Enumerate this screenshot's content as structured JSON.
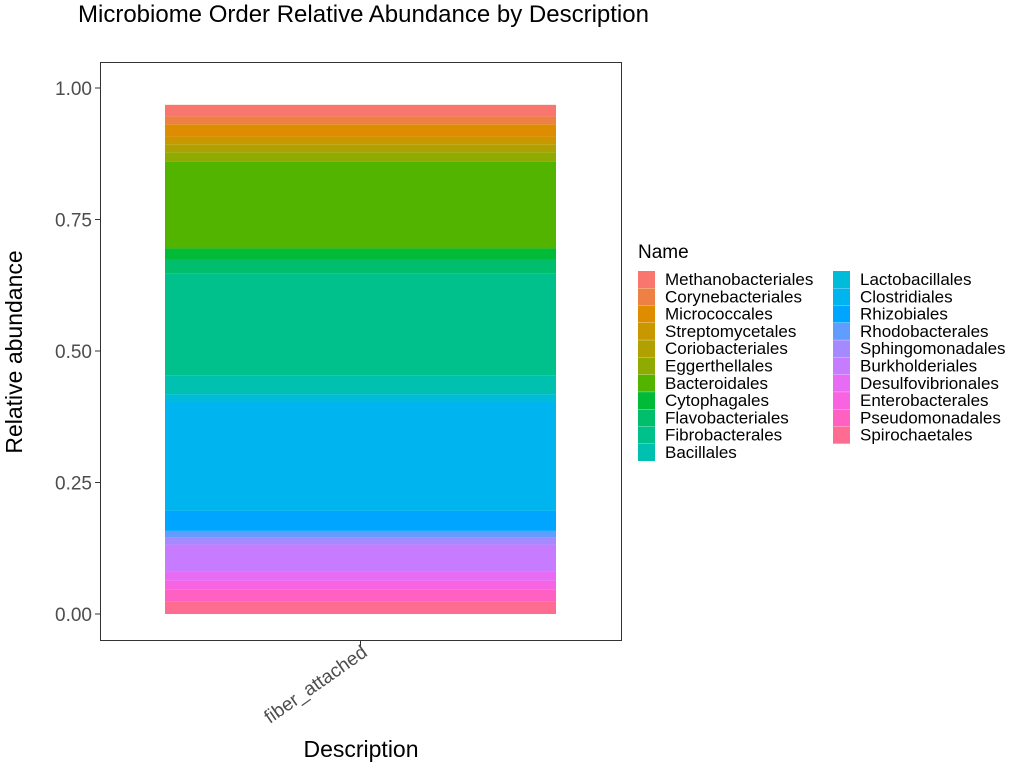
{
  "chart_data": {
    "type": "bar",
    "title": "Microbiome Order Relative Abundance by Description",
    "xlabel": "Description",
    "ylabel": "Relative abundance",
    "categories": [
      "fiber_attached"
    ],
    "ylim": [
      0,
      1
    ],
    "yticks": [
      0,
      0.25,
      0.5,
      0.75,
      1
    ],
    "ytick_labels": [
      "0.00",
      "0.25",
      "0.50",
      "0.75",
      "1.00"
    ],
    "stacked": true,
    "grid": false,
    "legend_title": "Name",
    "legend_position": "right",
    "series": [
      {
        "name": "Methanobacteriales",
        "color": "#F8766D",
        "values": [
          0.022
        ]
      },
      {
        "name": "Corynebacteriales",
        "color": "#EE8043",
        "values": [
          0.015
        ]
      },
      {
        "name": "Micrococcales",
        "color": "#DE8C00",
        "values": [
          0.024
        ]
      },
      {
        "name": "Streptomycetales",
        "color": "#C99800",
        "values": [
          0.014
        ]
      },
      {
        "name": "Coriobacteriales",
        "color": "#B0A100",
        "values": [
          0.015
        ]
      },
      {
        "name": "Eggerthellales",
        "color": "#8FAA00",
        "values": [
          0.018
        ]
      },
      {
        "name": "Bacteroidales",
        "color": "#53B400",
        "values": [
          0.165
        ]
      },
      {
        "name": "Cytophagales",
        "color": "#00BA38",
        "values": [
          0.021
        ]
      },
      {
        "name": "Flavobacteriales",
        "color": "#00BE6C",
        "values": [
          0.027
        ]
      },
      {
        "name": "Fibrobacterales",
        "color": "#00C08B",
        "values": [
          0.193
        ]
      },
      {
        "name": "Bacillales",
        "color": "#00C0AF",
        "values": [
          0.036
        ]
      },
      {
        "name": "Lactobacillales",
        "color": "#00BCD8",
        "values": [
          0.014
        ]
      },
      {
        "name": "Clostridiales",
        "color": "#00B4EF",
        "values": [
          0.208
        ]
      },
      {
        "name": "Rhizobiales",
        "color": "#00A5FF",
        "values": [
          0.038
        ]
      },
      {
        "name": "Rhodobacterales",
        "color": "#619CFF",
        "values": [
          0.013
        ]
      },
      {
        "name": "Sphingomonadales",
        "color": "#A58AFF",
        "values": [
          0.013
        ]
      },
      {
        "name": "Burkholderiales",
        "color": "#C77CFF",
        "values": [
          0.052
        ]
      },
      {
        "name": "Desulfovibrionales",
        "color": "#E76BF3",
        "values": [
          0.017
        ]
      },
      {
        "name": "Enterobacterales",
        "color": "#F763E0",
        "values": [
          0.017
        ]
      },
      {
        "name": "Pseudomonadales",
        "color": "#FF61C3",
        "values": [
          0.022
        ]
      },
      {
        "name": "Spirochaetales",
        "color": "#FF6C91",
        "values": [
          0.024
        ]
      }
    ]
  }
}
